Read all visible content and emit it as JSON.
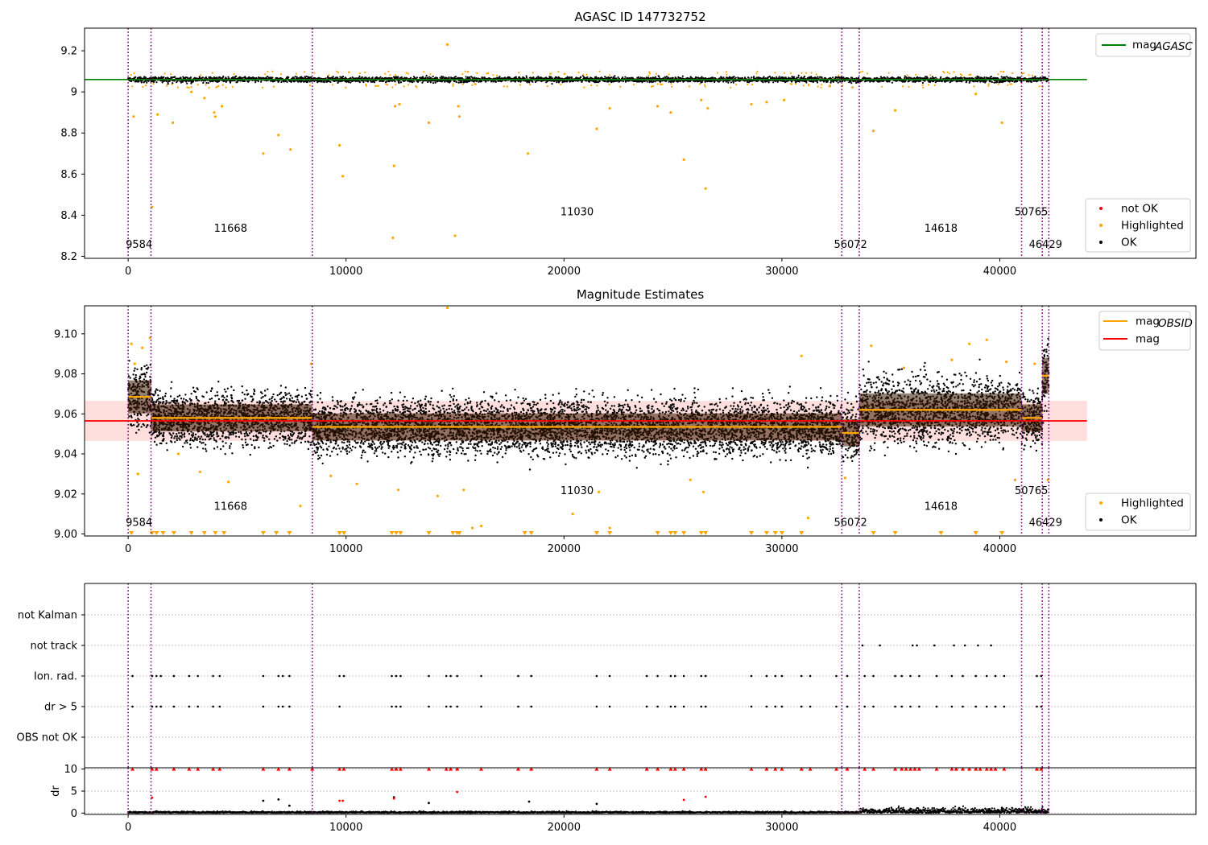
{
  "figure": {
    "title_top": "AGASC ID 147732752",
    "title_mid": "Magnitude Estimates"
  },
  "colors": {
    "ok": "#000000",
    "highlighted": "#ffa500",
    "not_ok": "#ff0000",
    "mag_agasc": "#008000",
    "mag_line": "#ff0000",
    "mag_band": "#ffd6d6",
    "mag_obsid": "#ffa500",
    "obs_boundary": "#800080"
  },
  "chart_data": [
    {
      "type": "scatter",
      "title": "AGASC ID 147732752",
      "xlim": [
        -2000,
        49000
      ],
      "ylim": [
        8.19,
        9.31
      ],
      "xticks": [
        0,
        10000,
        20000,
        30000,
        40000
      ],
      "yticks": [
        8.2,
        8.4,
        8.6,
        8.8,
        9.0,
        9.2
      ],
      "grid": false,
      "series": [
        {
          "name": "mag_AGASC",
          "type": "hline",
          "y": 9.06,
          "x_range": [
            -2000,
            44000
          ]
        }
      ],
      "band": {
        "center": 9.06,
        "spread": 0.045,
        "ok_spread": 0.013
      },
      "highlighted_points": [
        [
          250,
          8.88
        ],
        [
          1100,
          8.44
        ],
        [
          1350,
          8.89
        ],
        [
          2050,
          8.85
        ],
        [
          2900,
          9.0
        ],
        [
          3500,
          8.97
        ],
        [
          3950,
          8.9
        ],
        [
          4000,
          8.88
        ],
        [
          4300,
          8.93
        ],
        [
          6200,
          8.7
        ],
        [
          6900,
          8.79
        ],
        [
          7450,
          8.72
        ],
        [
          9700,
          8.74
        ],
        [
          9850,
          8.59
        ],
        [
          12150,
          8.29
        ],
        [
          12200,
          8.64
        ],
        [
          12250,
          8.93
        ],
        [
          12450,
          8.94
        ],
        [
          13800,
          8.85
        ],
        [
          14650,
          9.23
        ],
        [
          15000,
          8.3
        ],
        [
          15200,
          8.88
        ],
        [
          15150,
          8.93
        ],
        [
          18350,
          8.7
        ],
        [
          21500,
          8.82
        ],
        [
          22100,
          8.92
        ],
        [
          24300,
          8.93
        ],
        [
          24900,
          8.9
        ],
        [
          25500,
          8.67
        ],
        [
          26300,
          8.96
        ],
        [
          26500,
          8.53
        ],
        [
          26600,
          8.92
        ],
        [
          28600,
          8.94
        ],
        [
          29300,
          8.95
        ],
        [
          30100,
          8.96
        ],
        [
          34200,
          8.81
        ],
        [
          35200,
          8.91
        ],
        [
          38900,
          8.99
        ],
        [
          40100,
          8.85
        ]
      ],
      "obs_boundaries": [
        0,
        1050,
        8450,
        32750,
        33550,
        41000,
        41950,
        42250
      ],
      "obs_labels": [
        {
          "text": "9584",
          "x": 500,
          "y": 8.24
        },
        {
          "text": "11668",
          "x": 4700,
          "y": 8.32
        },
        {
          "text": "11030",
          "x": 20600,
          "y": 8.4
        },
        {
          "text": "56072",
          "x": 33150,
          "y": 8.24
        },
        {
          "text": "14618",
          "x": 37300,
          "y": 8.32
        },
        {
          "text": "50765",
          "x": 41450,
          "y": 8.4
        },
        {
          "text": "46429",
          "x": 42100,
          "y": 8.24
        }
      ],
      "legend_upper": [
        {
          "label_main": "mag",
          "label_sub": "AGASC",
          "kind": "line",
          "color": "#008000"
        }
      ],
      "legend_lower": [
        {
          "label": "not OK",
          "kind": "dot",
          "color": "#ff0000"
        },
        {
          "label": "Highlighted",
          "kind": "dot",
          "color": "#ffa500"
        },
        {
          "label": "OK",
          "kind": "dot",
          "color": "#000000"
        }
      ],
      "legend_placement": {
        "upper": "top-right",
        "lower": "bottom-right"
      }
    },
    {
      "type": "scatter",
      "title": "Magnitude Estimates",
      "xlim": [
        -2000,
        49000
      ],
      "ylim": [
        8.999,
        9.114
      ],
      "xticks": [
        0,
        10000,
        20000,
        30000,
        40000
      ],
      "yticks": [
        9.0,
        9.02,
        9.04,
        9.06,
        9.08,
        9.1
      ],
      "ytick_labels": [
        "9.00",
        "9.02",
        "9.04",
        "9.06",
        "9.08",
        "9.10"
      ],
      "grid": false,
      "mag": {
        "value": 9.0565,
        "band": [
          9.0465,
          9.0665
        ],
        "x_range": [
          -2000,
          44000
        ]
      },
      "obs_segments": [
        {
          "x0": 0,
          "x1": 1050,
          "mag": 9.0685,
          "spread": 0.011
        },
        {
          "x0": 1050,
          "x1": 8450,
          "mag": 9.058,
          "spread": 0.009
        },
        {
          "x0": 8450,
          "x1": 32750,
          "mag": 9.0535,
          "spread": 0.009
        },
        {
          "x0": 32750,
          "x1": 33550,
          "mag": 9.0505,
          "spread": 0.009
        },
        {
          "x0": 33550,
          "x1": 41000,
          "mag": 9.062,
          "spread": 0.011
        },
        {
          "x0": 41000,
          "x1": 41950,
          "mag": 9.058,
          "spread": 0.009
        },
        {
          "x0": 41950,
          "x1": 42250,
          "mag": 9.079,
          "spread": 0.012
        }
      ],
      "highlighted_points": [
        [
          150,
          9.095
        ],
        [
          300,
          9.085
        ],
        [
          450,
          9.03
        ],
        [
          650,
          9.093
        ],
        [
          1000,
          9.098
        ],
        [
          2300,
          9.04
        ],
        [
          3300,
          9.031
        ],
        [
          4600,
          9.026
        ],
        [
          7900,
          9.014
        ],
        [
          8400,
          9.085
        ],
        [
          9300,
          9.029
        ],
        [
          10500,
          9.025
        ],
        [
          12400,
          9.022
        ],
        [
          14200,
          9.019
        ],
        [
          14650,
          9.113
        ],
        [
          15400,
          9.022
        ],
        [
          15800,
          9.003
        ],
        [
          16200,
          9.004
        ],
        [
          20400,
          9.01
        ],
        [
          21600,
          9.021
        ],
        [
          22100,
          9.003
        ],
        [
          25800,
          9.027
        ],
        [
          26400,
          9.021
        ],
        [
          30900,
          9.089
        ],
        [
          31200,
          9.008
        ],
        [
          32900,
          9.028
        ],
        [
          34100,
          9.094
        ],
        [
          35600,
          9.083
        ],
        [
          37800,
          9.087
        ],
        [
          38600,
          9.095
        ],
        [
          39400,
          9.097
        ],
        [
          40300,
          9.086
        ],
        [
          40700,
          9.027
        ],
        [
          41600,
          9.085
        ],
        [
          42200,
          9.027
        ]
      ],
      "below_axis_markers": [
        [
          150,
          9.0
        ],
        [
          1100,
          9.0
        ],
        [
          1300,
          9.0
        ],
        [
          1600,
          9.0
        ],
        [
          2100,
          9.0
        ],
        [
          2900,
          9.0
        ],
        [
          3500,
          9.0
        ],
        [
          4000,
          9.0
        ],
        [
          4400,
          9.0
        ],
        [
          6200,
          9.0
        ],
        [
          6800,
          9.0
        ],
        [
          7400,
          9.0
        ],
        [
          9700,
          9.0
        ],
        [
          9900,
          9.0
        ],
        [
          12100,
          9.0
        ],
        [
          12300,
          9.0
        ],
        [
          12500,
          9.0
        ],
        [
          13800,
          9.0
        ],
        [
          14900,
          9.0
        ],
        [
          15100,
          9.0
        ],
        [
          15200,
          9.0
        ],
        [
          18200,
          9.0
        ],
        [
          18500,
          9.0
        ],
        [
          21500,
          9.0
        ],
        [
          22100,
          9.0
        ],
        [
          24300,
          9.0
        ],
        [
          24900,
          9.0
        ],
        [
          25100,
          9.0
        ],
        [
          25500,
          9.0
        ],
        [
          26300,
          9.0
        ],
        [
          26500,
          9.0
        ],
        [
          28600,
          9.0
        ],
        [
          29300,
          9.0
        ],
        [
          29700,
          9.0
        ],
        [
          30000,
          9.0
        ],
        [
          30900,
          9.0
        ],
        [
          34200,
          9.0
        ],
        [
          35200,
          9.0
        ],
        [
          37300,
          9.0
        ],
        [
          38900,
          9.0
        ],
        [
          40100,
          9.0
        ]
      ],
      "obs_boundaries": [
        0,
        1050,
        8450,
        32750,
        33550,
        41000,
        41950,
        42250
      ],
      "obs_labels": [
        {
          "text": "9584",
          "x": 500,
          "y": 9.004
        },
        {
          "text": "11668",
          "x": 4700,
          "y": 9.012
        },
        {
          "text": "11030",
          "x": 20600,
          "y": 9.02
        },
        {
          "text": "56072",
          "x": 33150,
          "y": 9.004
        },
        {
          "text": "14618",
          "x": 37300,
          "y": 9.012
        },
        {
          "text": "50765",
          "x": 41450,
          "y": 9.02
        },
        {
          "text": "46429",
          "x": 42100,
          "y": 9.004
        }
      ],
      "legend_upper": [
        {
          "label_main": "mag",
          "label_sub": "OBSID",
          "kind": "line",
          "color": "#ffa500"
        },
        {
          "label_main": "mag",
          "label_sub": "",
          "kind": "line",
          "color": "#ff0000"
        }
      ],
      "legend_lower": [
        {
          "label": "Highlighted",
          "kind": "dot",
          "color": "#ffa500"
        },
        {
          "label": "OK",
          "kind": "dot",
          "color": "#000000"
        }
      ],
      "legend_placement": {
        "upper": "top-right",
        "lower": "bottom-right"
      }
    },
    {
      "type": "scatter",
      "title": "",
      "xlim": [
        -2000,
        49000
      ],
      "categories": [
        "not Kalman",
        "not track",
        "Ion. rad.",
        "dr > 5",
        "OBS not OK"
      ],
      "grid": true,
      "flag_points": {
        "not track": [
          33700,
          34500,
          36000,
          36200,
          37000,
          37900,
          38400,
          39000,
          39600
        ],
        "Ion. rad.": [
          200,
          1100,
          1300,
          1500,
          2100,
          2800,
          3200,
          3900,
          4200,
          6200,
          6900,
          7100,
          7400,
          9700,
          9900,
          12100,
          12300,
          12500,
          13800,
          14600,
          14800,
          15100,
          16200,
          17900,
          18500,
          21500,
          22100,
          23800,
          24300,
          24900,
          25100,
          25500,
          26300,
          26500,
          28600,
          29300,
          29700,
          30000,
          30900,
          31300,
          32500,
          33000,
          33800,
          34200,
          35200,
          35500,
          35900,
          36300,
          37100,
          37800,
          38300,
          38900,
          39400,
          39800,
          40200,
          41700,
          41900
        ],
        "dr > 5": [
          200,
          1100,
          1300,
          1500,
          2100,
          2800,
          3200,
          3900,
          4200,
          6200,
          6900,
          7100,
          7400,
          9700,
          12100,
          12300,
          12500,
          13800,
          14600,
          14800,
          15100,
          16200,
          17900,
          18500,
          21500,
          22100,
          23800,
          24300,
          24900,
          25100,
          25500,
          26300,
          26500,
          28600,
          29300,
          29700,
          30000,
          30900,
          31300,
          32500,
          33000,
          33800,
          34200,
          35200,
          35500,
          35900,
          36300,
          37100,
          37800,
          38300,
          38900,
          39400,
          39800,
          40200,
          41700,
          41900
        ]
      },
      "obs_boundaries": [
        0,
        1050,
        8450,
        32750,
        33550,
        41000,
        41950,
        42250
      ]
    },
    {
      "type": "scatter",
      "title": "",
      "ylabel": "dr",
      "xlim": [
        -2000,
        49000
      ],
      "ylim": [
        -0.3,
        10.3
      ],
      "xticks": [
        0,
        10000,
        20000,
        30000,
        40000
      ],
      "yticks": [
        0,
        5,
        10
      ],
      "grid": true,
      "not_ok_x": [
        200,
        1100,
        1300,
        2100,
        2800,
        3200,
        3900,
        4200,
        6200,
        6900,
        7400,
        8450,
        9700,
        9900,
        12100,
        12300,
        12500,
        13800,
        14600,
        14800,
        15100,
        16200,
        17900,
        18500,
        21500,
        22100,
        23800,
        24300,
        24900,
        25100,
        25500,
        26300,
        26500,
        28600,
        29300,
        29700,
        30000,
        30900,
        31300,
        32500,
        33000,
        33800,
        34200,
        35200,
        35500,
        35700,
        35900,
        36100,
        36300,
        37100,
        37800,
        38000,
        38300,
        38600,
        38900,
        39100,
        39400,
        39600,
        39800,
        40200,
        41700,
        41900
      ],
      "mid_not_ok": [
        [
          1100,
          3.5
        ],
        [
          9700,
          2.8
        ],
        [
          9850,
          2.8
        ],
        [
          12200,
          3.3
        ],
        [
          15100,
          4.8
        ],
        [
          25500,
          3.0
        ],
        [
          26500,
          3.7
        ]
      ],
      "mid_ok": [
        [
          6200,
          2.8
        ],
        [
          6900,
          3.1
        ],
        [
          7400,
          1.7
        ],
        [
          12200,
          3.6
        ],
        [
          13800,
          2.3
        ],
        [
          18400,
          2.6
        ],
        [
          21500,
          2.1
        ],
        [
          40100,
          1.2
        ]
      ],
      "obs_boundaries": [
        0,
        1050,
        8450,
        32750,
        33550,
        41000,
        41950,
        42250
      ]
    }
  ]
}
